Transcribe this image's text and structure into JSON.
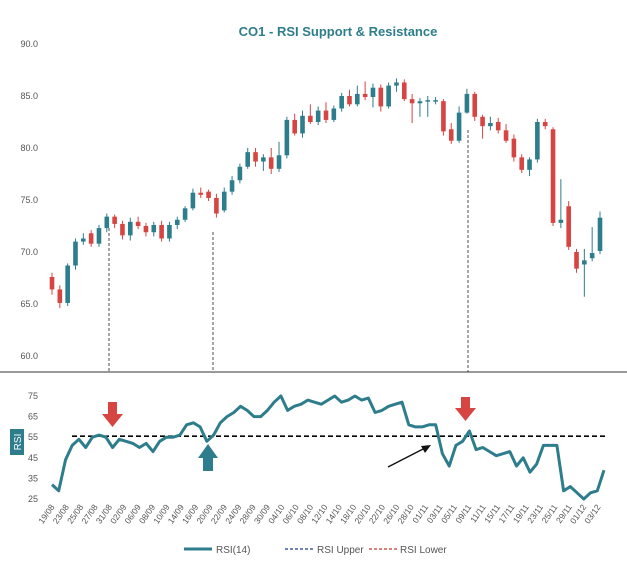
{
  "chart_data": [
    {
      "type": "candlestick",
      "title": "CO1 - RSI Support & Resistance",
      "ylim": [
        60,
        90
      ],
      "y_ticks": [
        "90.0",
        "85.0",
        "80.0",
        "75.0",
        "70.0",
        "65.0",
        "60.0"
      ],
      "colors": {
        "up": "#2e7d8c",
        "down": "#d64541"
      },
      "candles": [
        {
          "o": 67.6,
          "h": 68.0,
          "l": 65.9,
          "c": 66.4
        },
        {
          "o": 66.4,
          "h": 66.8,
          "l": 64.6,
          "c": 65.1
        },
        {
          "o": 65.1,
          "h": 68.9,
          "l": 64.8,
          "c": 68.7
        },
        {
          "o": 68.7,
          "h": 71.3,
          "l": 68.3,
          "c": 71.0
        },
        {
          "o": 71.0,
          "h": 71.8,
          "l": 70.7,
          "c": 71.3
        },
        {
          "o": 71.8,
          "h": 72.1,
          "l": 70.5,
          "c": 70.8
        },
        {
          "o": 70.8,
          "h": 72.6,
          "l": 70.5,
          "c": 72.3
        },
        {
          "o": 72.3,
          "h": 73.7,
          "l": 71.9,
          "c": 73.4
        },
        {
          "o": 73.4,
          "h": 73.6,
          "l": 72.3,
          "c": 72.7
        },
        {
          "o": 72.7,
          "h": 73.0,
          "l": 71.2,
          "c": 71.6
        },
        {
          "o": 71.6,
          "h": 73.3,
          "l": 71.1,
          "c": 72.9
        },
        {
          "o": 72.9,
          "h": 73.4,
          "l": 72.2,
          "c": 72.5
        },
        {
          "o": 72.5,
          "h": 72.8,
          "l": 71.5,
          "c": 71.9
        },
        {
          "o": 71.9,
          "h": 72.9,
          "l": 71.5,
          "c": 72.6
        },
        {
          "o": 72.6,
          "h": 73.0,
          "l": 71.0,
          "c": 71.3
        },
        {
          "o": 71.3,
          "h": 72.9,
          "l": 71.0,
          "c": 72.6
        },
        {
          "o": 72.6,
          "h": 73.4,
          "l": 72.2,
          "c": 73.1
        },
        {
          "o": 73.1,
          "h": 74.4,
          "l": 72.9,
          "c": 74.2
        },
        {
          "o": 74.2,
          "h": 76.1,
          "l": 74.0,
          "c": 75.7
        },
        {
          "o": 75.7,
          "h": 76.2,
          "l": 75.2,
          "c": 75.5
        },
        {
          "o": 75.8,
          "h": 76.0,
          "l": 74.9,
          "c": 75.2
        },
        {
          "o": 75.2,
          "h": 75.6,
          "l": 73.3,
          "c": 73.7
        },
        {
          "o": 74.0,
          "h": 76.2,
          "l": 73.8,
          "c": 75.8
        },
        {
          "o": 75.8,
          "h": 77.3,
          "l": 75.5,
          "c": 76.9
        },
        {
          "o": 76.9,
          "h": 78.5,
          "l": 76.6,
          "c": 78.2
        },
        {
          "o": 78.2,
          "h": 80.0,
          "l": 78.0,
          "c": 79.6
        },
        {
          "o": 79.6,
          "h": 80.0,
          "l": 78.2,
          "c": 78.7
        },
        {
          "o": 78.7,
          "h": 79.4,
          "l": 77.8,
          "c": 79.1
        },
        {
          "o": 79.1,
          "h": 80.0,
          "l": 77.5,
          "c": 78.0
        },
        {
          "o": 78.0,
          "h": 80.6,
          "l": 77.7,
          "c": 79.3
        },
        {
          "o": 79.3,
          "h": 83.0,
          "l": 79.0,
          "c": 82.7
        },
        {
          "o": 82.7,
          "h": 83.3,
          "l": 81.2,
          "c": 81.4
        },
        {
          "o": 81.4,
          "h": 83.6,
          "l": 81.0,
          "c": 83.1
        },
        {
          "o": 83.1,
          "h": 84.2,
          "l": 82.3,
          "c": 82.5
        },
        {
          "o": 82.5,
          "h": 84.0,
          "l": 82.2,
          "c": 83.6
        },
        {
          "o": 83.6,
          "h": 84.4,
          "l": 82.4,
          "c": 82.7
        },
        {
          "o": 82.7,
          "h": 84.1,
          "l": 82.5,
          "c": 83.8
        },
        {
          "o": 83.8,
          "h": 85.3,
          "l": 83.5,
          "c": 85.0
        },
        {
          "o": 85.0,
          "h": 85.6,
          "l": 84.0,
          "c": 84.2
        },
        {
          "o": 84.2,
          "h": 86.0,
          "l": 84.0,
          "c": 85.2
        },
        {
          "o": 85.2,
          "h": 86.4,
          "l": 84.6,
          "c": 84.9
        },
        {
          "o": 84.9,
          "h": 86.2,
          "l": 83.9,
          "c": 85.8
        },
        {
          "o": 85.8,
          "h": 86.1,
          "l": 83.5,
          "c": 84.0
        },
        {
          "o": 84.0,
          "h": 86.3,
          "l": 83.8,
          "c": 86.0
        },
        {
          "o": 86.0,
          "h": 86.7,
          "l": 85.4,
          "c": 86.3
        },
        {
          "o": 86.3,
          "h": 86.6,
          "l": 84.5,
          "c": 84.7
        },
        {
          "o": 84.7,
          "h": 85.2,
          "l": 82.4,
          "c": 84.3
        },
        {
          "o": 84.3,
          "h": 84.8,
          "l": 83.0,
          "c": 84.5
        },
        {
          "o": 84.5,
          "h": 85.0,
          "l": 83.0,
          "c": 84.6
        },
        {
          "o": 84.6,
          "h": 84.9,
          "l": 84.2,
          "c": 84.6
        },
        {
          "o": 84.5,
          "h": 84.7,
          "l": 81.2,
          "c": 81.6
        },
        {
          "o": 81.8,
          "h": 82.4,
          "l": 80.4,
          "c": 80.7
        },
        {
          "o": 80.7,
          "h": 84.0,
          "l": 80.5,
          "c": 83.4
        },
        {
          "o": 83.4,
          "h": 85.7,
          "l": 83.3,
          "c": 85.2
        },
        {
          "o": 85.2,
          "h": 85.4,
          "l": 82.6,
          "c": 83.0
        },
        {
          "o": 83.0,
          "h": 83.2,
          "l": 80.9,
          "c": 82.1
        },
        {
          "o": 82.1,
          "h": 83.0,
          "l": 81.7,
          "c": 82.4
        },
        {
          "o": 82.5,
          "h": 82.9,
          "l": 81.4,
          "c": 81.7
        },
        {
          "o": 81.7,
          "h": 82.3,
          "l": 80.5,
          "c": 80.7
        },
        {
          "o": 80.9,
          "h": 81.3,
          "l": 78.7,
          "c": 79.1
        },
        {
          "o": 79.1,
          "h": 79.4,
          "l": 77.6,
          "c": 77.9
        },
        {
          "o": 77.9,
          "h": 79.1,
          "l": 77.3,
          "c": 78.9
        },
        {
          "o": 78.9,
          "h": 82.8,
          "l": 78.6,
          "c": 82.5
        },
        {
          "o": 82.5,
          "h": 82.8,
          "l": 81.8,
          "c": 82.1
        },
        {
          "o": 81.8,
          "h": 82.0,
          "l": 72.5,
          "c": 72.8
        },
        {
          "o": 72.8,
          "h": 77.0,
          "l": 72.3,
          "c": 73.1
        },
        {
          "o": 74.4,
          "h": 74.9,
          "l": 70.2,
          "c": 70.5
        },
        {
          "o": 70.0,
          "h": 70.3,
          "l": 68.0,
          "c": 68.4
        },
        {
          "o": 68.8,
          "h": 70.3,
          "l": 65.7,
          "c": 69.2
        },
        {
          "o": 69.4,
          "h": 72.4,
          "l": 69.1,
          "c": 69.9
        },
        {
          "o": 70.1,
          "h": 73.9,
          "l": 69.8,
          "c": 73.3
        }
      ]
    },
    {
      "type": "line",
      "ylabel": "RSI",
      "ylim": [
        25,
        75
      ],
      "y_ticks": [
        "75",
        "65",
        "55",
        "45",
        "35",
        "25"
      ],
      "x_ticks": [
        "19/08",
        "23/08",
        "25/08",
        "27/08",
        "31/08",
        "02/09",
        "06/09",
        "08/09",
        "10/09",
        "14/09",
        "16/09",
        "20/09",
        "22/09",
        "24/09",
        "28/09",
        "30/09",
        "04/10",
        "06/10",
        "08/10",
        "12/10",
        "14/10",
        "18/10",
        "20/10",
        "22/10",
        "26/10",
        "28/10",
        "01/11",
        "03/11",
        "05/11",
        "09/11",
        "11/11",
        "15/11",
        "17/11",
        "19/11",
        "23/11",
        "25/11",
        "29/11",
        "01/12",
        "03/12"
      ],
      "series": [
        {
          "name": "RSI(14)",
          "color": "#2e7d8c",
          "values": [
            32,
            29,
            44,
            51,
            54,
            50,
            55,
            56,
            55,
            50,
            54,
            53,
            52,
            50,
            52,
            48,
            53,
            55,
            55,
            56,
            61,
            62,
            60,
            53,
            56,
            62,
            65,
            67,
            70,
            68,
            65,
            65,
            68,
            72,
            75,
            68,
            70,
            71,
            73,
            72,
            71,
            73,
            75,
            72,
            73,
            75,
            73,
            74,
            67,
            68,
            70,
            71,
            72,
            61,
            60,
            60,
            61,
            61,
            47,
            41,
            51,
            53,
            58,
            49,
            50,
            48,
            46,
            47,
            48,
            41,
            45,
            38,
            42,
            51,
            51,
            51,
            29,
            31,
            28,
            25,
            28,
            29,
            39
          ]
        },
        {
          "name": "RSI Upper",
          "color": "#1f3a8a",
          "values": []
        },
        {
          "name": "RSI Lower",
          "color": "#c0392b",
          "values": []
        }
      ],
      "reference_line": 55.5
    }
  ],
  "legend": [
    {
      "label": "RSI(14)",
      "color": "#2e7d8c"
    },
    {
      "label": "RSI Upper",
      "color": "#1f3a8a"
    },
    {
      "label": "RSI Lower",
      "color": "#c0392b"
    }
  ]
}
